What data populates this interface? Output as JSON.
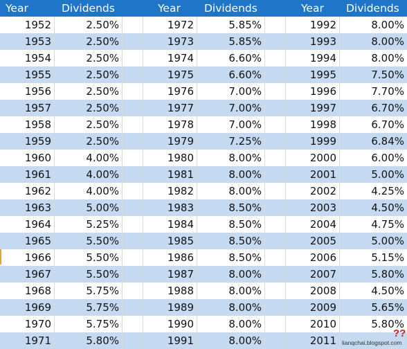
{
  "table": {
    "headers": [
      "Year",
      "Dividends",
      "Year",
      "Dividends",
      "Year",
      "Dividends"
    ],
    "rows": [
      [
        "1952",
        "2.50%",
        "1972",
        "5.85%",
        "1992",
        "8.00%"
      ],
      [
        "1953",
        "2.50%",
        "1973",
        "5.85%",
        "1993",
        "8.00%"
      ],
      [
        "1954",
        "2.50%",
        "1974",
        "6.60%",
        "1994",
        "8.00%"
      ],
      [
        "1955",
        "2.50%",
        "1975",
        "6.60%",
        "1995",
        "7.50%"
      ],
      [
        "1956",
        "2.50%",
        "1976",
        "7.00%",
        "1996",
        "7.70%"
      ],
      [
        "1957",
        "2.50%",
        "1977",
        "7.00%",
        "1997",
        "6.70%"
      ],
      [
        "1958",
        "2.50%",
        "1978",
        "7.00%",
        "1998",
        "6.70%"
      ],
      [
        "1959",
        "2.50%",
        "1979",
        "7.25%",
        "1999",
        "6.84%"
      ],
      [
        "1960",
        "4.00%",
        "1980",
        "8.00%",
        "2000",
        "6.00%"
      ],
      [
        "1961",
        "4.00%",
        "1981",
        "8.00%",
        "2001",
        "5.00%"
      ],
      [
        "1962",
        "4.00%",
        "1982",
        "8.00%",
        "2002",
        "4.25%"
      ],
      [
        "1963",
        "5.00%",
        "1983",
        "8.50%",
        "2003",
        "4.50%"
      ],
      [
        "1964",
        "5.25%",
        "1984",
        "8.50%",
        "2004",
        "4.75%"
      ],
      [
        "1965",
        "5.50%",
        "1985",
        "8.50%",
        "2005",
        "5.00%"
      ],
      [
        "1966",
        "5.50%",
        "1986",
        "8.50%",
        "2006",
        "5.15%"
      ],
      [
        "1967",
        "5.50%",
        "1987",
        "8.00%",
        "2007",
        "5.80%"
      ],
      [
        "1968",
        "5.75%",
        "1988",
        "8.00%",
        "2008",
        "4.50%"
      ],
      [
        "1969",
        "5.75%",
        "1989",
        "8.00%",
        "2009",
        "5.65%"
      ],
      [
        "1970",
        "5.75%",
        "1990",
        "8.00%",
        "2010",
        "5.80%"
      ],
      [
        "1971",
        "5.80%",
        "1991",
        "8.00%",
        "2011",
        ""
      ]
    ]
  },
  "pending_mark": "??",
  "watermark": "lianqchai.blogspot.com",
  "colors": {
    "header_bg": "#1f76c9",
    "header_text": "#ffffff",
    "band_bg": "#c5d9f1",
    "plain_bg": "#ffffff",
    "pending_mark": "#d01818"
  }
}
